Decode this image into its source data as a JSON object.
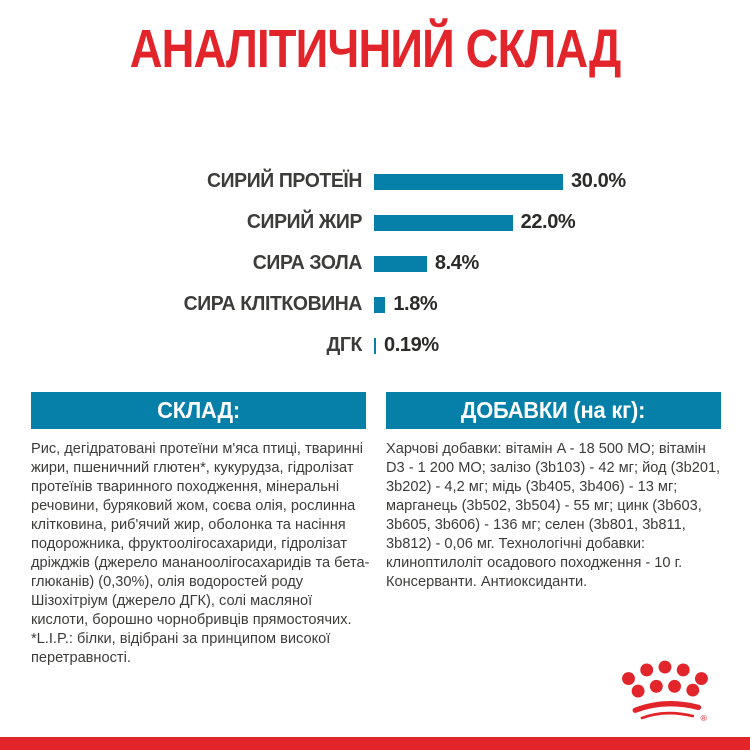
{
  "title": "АНАЛІТИЧНИЙ СКЛАД",
  "colors": {
    "brand_red": "#e2242b",
    "bar_blue": "#067fa9",
    "text_dark": "#3c3c3b",
    "value_dark": "#2b2b2a",
    "header_text": "#ffffff"
  },
  "chart_data": {
    "type": "bar",
    "orientation": "horizontal",
    "title": "АНАЛІТИЧНИЙ СКЛАД",
    "categories": [
      "СИРИЙ ПРОТЕЇН",
      "СИРИЙ ЖИР",
      "СИРА ЗОЛА",
      "СИРА КЛІТКОВИНА",
      "ДГК"
    ],
    "values": [
      30.0,
      22.0,
      8.4,
      1.8,
      0.19
    ],
    "value_labels": [
      "30.0%",
      "22.0%",
      "8.4%",
      "1.8%",
      "0.19%"
    ],
    "unit": "%",
    "xlim": [
      0,
      30
    ],
    "grid": false,
    "legend": false,
    "bar_color": "#067fa9"
  },
  "sections": {
    "composition": {
      "header": "СКЛАД:",
      "body": "Рис, дегідратовані протеїни м'яса птиці, тваринні жири, пшеничний глютен*, кукурудза, гідролізат протеїнів тваринного походження, мінеральні речовини, буряковий жом, соєва олія, рослинна клітковина, риб'ячий жир, оболонка та насіння подорожника, фруктоолігосахариди, гідролізат дріжджів (джерело мананоолігосахаридів та бета-глюканів) (0,30%), олія водоростей роду Шізохітріум (джерело ДГК), солі масляної кислоти, борошно чорнобривців прямостоячих. *L.I.P.: білки, відібрані за принципом високої перетравності."
    },
    "additives": {
      "header": "ДОБАВКИ (на кг):",
      "body": "Харчові добавки: вітамін A - 18 500 МО; вітамін D3 - 1 200 МО; залізо (3b103) - 42 мг; йод (3b201, 3b202) - 4,2 мг; мідь (3b405, 3b406) - 13 мг; марганець (3b502, 3b504) - 55 мг; цинк (3b603, 3b605, 3b606) - 136 мг; селен (3b801, 3b811, 3b812) - 0,06 мг. Технологічні добавки: клиноптилоліт осадового походження - 10 г. Консерванти. Антиоксиданти."
    }
  },
  "logo": {
    "name": "royal-canin-crown",
    "registered_mark": "®"
  }
}
